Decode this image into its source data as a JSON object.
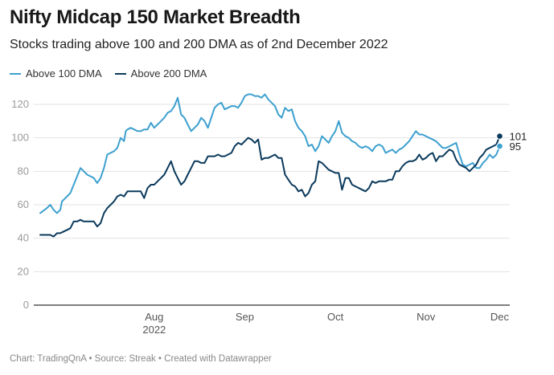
{
  "title": "Nifty Midcap 150 Market Breadth",
  "subtitle": "Stocks trading above 100 and 200 DMA as of 2nd December 2022",
  "footer": "Chart: TradingQnA • Source: Streak • Created with Datawrapper",
  "colors": {
    "above100": "#3da0cf",
    "above200": "#0b3a5c",
    "grid": "#e2e2e2",
    "axis": "#333333"
  },
  "chart_data": {
    "type": "line",
    "title": "Nifty Midcap 150 Market Breadth",
    "subtitle": "Stocks trading above 100 and 200 DMA as of 2nd December 2022",
    "ylim": [
      0,
      130
    ],
    "yticks": [
      0,
      20,
      40,
      60,
      80,
      100,
      120
    ],
    "xlim": [
      0,
      140
    ],
    "xticks": [
      {
        "pos": 34,
        "label": "Aug",
        "sub": "2022"
      },
      {
        "pos": 61,
        "label": "Sep",
        "sub": ""
      },
      {
        "pos": 88,
        "label": "Oct",
        "sub": ""
      },
      {
        "pos": 115,
        "label": "Nov",
        "sub": ""
      },
      {
        "pos": 137,
        "label": "Dec",
        "sub": ""
      }
    ],
    "legend_position": "top-left",
    "grid": true,
    "series": [
      {
        "name": "Above 100 DMA",
        "end_label": "95",
        "points": [
          [
            0,
            55
          ],
          [
            2,
            58
          ],
          [
            3,
            60
          ],
          [
            4,
            57
          ],
          [
            5,
            55
          ],
          [
            6,
            57
          ],
          [
            6.5,
            62
          ],
          [
            8,
            65
          ],
          [
            9,
            67
          ],
          [
            10,
            72
          ],
          [
            11,
            77
          ],
          [
            12,
            82
          ],
          [
            13,
            80
          ],
          [
            14,
            78
          ],
          [
            15,
            77
          ],
          [
            16,
            76
          ],
          [
            17,
            73
          ],
          [
            18,
            76
          ],
          [
            19,
            82
          ],
          [
            20,
            90
          ],
          [
            21,
            91
          ],
          [
            22,
            92
          ],
          [
            23,
            94
          ],
          [
            24,
            100
          ],
          [
            25,
            98
          ],
          [
            25.5,
            104
          ],
          [
            26,
            105
          ],
          [
            27,
            106
          ],
          [
            28,
            105
          ],
          [
            29,
            104
          ],
          [
            30,
            104
          ],
          [
            31,
            105
          ],
          [
            32,
            105
          ],
          [
            33,
            109
          ],
          [
            34,
            106
          ],
          [
            35,
            108
          ],
          [
            36,
            110
          ],
          [
            37,
            112
          ],
          [
            38,
            115
          ],
          [
            39,
            116
          ],
          [
            40,
            119
          ],
          [
            41,
            124
          ],
          [
            42,
            114
          ],
          [
            43,
            112
          ],
          [
            44,
            108
          ],
          [
            45,
            104
          ],
          [
            46,
            106
          ],
          [
            47,
            108
          ],
          [
            48,
            112
          ],
          [
            49,
            110
          ],
          [
            50,
            106
          ],
          [
            51,
            112
          ],
          [
            52,
            118
          ],
          [
            53,
            120
          ],
          [
            54,
            121
          ],
          [
            55,
            117
          ],
          [
            56,
            118
          ],
          [
            57,
            119
          ],
          [
            58,
            119
          ],
          [
            59,
            118
          ],
          [
            60,
            121
          ],
          [
            61,
            125
          ],
          [
            62,
            126
          ],
          [
            63,
            126
          ],
          [
            64,
            125
          ],
          [
            65,
            125
          ],
          [
            66,
            124
          ],
          [
            67,
            126
          ],
          [
            68,
            123
          ],
          [
            69,
            121
          ],
          [
            70,
            119
          ],
          [
            71,
            114
          ],
          [
            72,
            112
          ],
          [
            73,
            118
          ],
          [
            74,
            116
          ],
          [
            75,
            117
          ],
          [
            76,
            110
          ],
          [
            77,
            106
          ],
          [
            78,
            104
          ],
          [
            79,
            101
          ],
          [
            80,
            95
          ],
          [
            81,
            96
          ],
          [
            82,
            92
          ],
          [
            83,
            95
          ],
          [
            84,
            101
          ],
          [
            85,
            99
          ],
          [
            86,
            97
          ],
          [
            87,
            101
          ],
          [
            88,
            104
          ],
          [
            89,
            110
          ],
          [
            90,
            103
          ],
          [
            91,
            101
          ],
          [
            92,
            100
          ],
          [
            93,
            98
          ],
          [
            94,
            97
          ],
          [
            95,
            95
          ],
          [
            96,
            94
          ],
          [
            97,
            95
          ],
          [
            98,
            94
          ],
          [
            99,
            92
          ],
          [
            100,
            95
          ],
          [
            101,
            96
          ],
          [
            102,
            95
          ],
          [
            103,
            91
          ],
          [
            104,
            92
          ],
          [
            105,
            93
          ],
          [
            106,
            91
          ],
          [
            107,
            93
          ],
          [
            108,
            94
          ],
          [
            109,
            96
          ],
          [
            110,
            98
          ],
          [
            111,
            101
          ],
          [
            112,
            104
          ],
          [
            113,
            102
          ],
          [
            114,
            102
          ],
          [
            115,
            101
          ],
          [
            116,
            100
          ],
          [
            117,
            99
          ],
          [
            118,
            98
          ],
          [
            119,
            96
          ],
          [
            120,
            94
          ],
          [
            121,
            94
          ],
          [
            122,
            95
          ],
          [
            123,
            96
          ],
          [
            124,
            97
          ],
          [
            125,
            90
          ],
          [
            126,
            84
          ],
          [
            127,
            83
          ],
          [
            128,
            84
          ],
          [
            129,
            85
          ],
          [
            130,
            82
          ],
          [
            131,
            82
          ],
          [
            132,
            85
          ],
          [
            133,
            87
          ],
          [
            134,
            90
          ],
          [
            135,
            88
          ],
          [
            136,
            90
          ],
          [
            137,
            95
          ]
        ]
      },
      {
        "name": "Above 200 DMA",
        "end_label": "101",
        "points": [
          [
            0,
            42
          ],
          [
            2,
            42
          ],
          [
            3,
            42
          ],
          [
            4,
            41
          ],
          [
            5,
            43
          ],
          [
            6,
            43
          ],
          [
            7,
            44
          ],
          [
            8,
            45
          ],
          [
            9,
            46
          ],
          [
            10,
            50
          ],
          [
            11,
            50
          ],
          [
            12,
            51
          ],
          [
            13,
            50
          ],
          [
            14,
            50
          ],
          [
            15,
            50
          ],
          [
            16,
            50
          ],
          [
            17,
            47
          ],
          [
            18,
            49
          ],
          [
            19,
            55
          ],
          [
            20,
            58
          ],
          [
            21,
            60
          ],
          [
            22,
            62
          ],
          [
            23,
            65
          ],
          [
            24,
            66
          ],
          [
            25,
            65
          ],
          [
            26,
            68
          ],
          [
            27,
            68
          ],
          [
            28,
            68
          ],
          [
            29,
            68
          ],
          [
            30,
            68
          ],
          [
            31,
            64
          ],
          [
            32,
            70
          ],
          [
            33,
            72
          ],
          [
            34,
            72
          ],
          [
            35,
            74
          ],
          [
            36,
            76
          ],
          [
            37,
            78
          ],
          [
            38,
            82
          ],
          [
            39,
            86
          ],
          [
            40,
            80
          ],
          [
            41,
            76
          ],
          [
            42,
            72
          ],
          [
            43,
            74
          ],
          [
            44,
            78
          ],
          [
            45,
            82
          ],
          [
            46,
            86
          ],
          [
            47,
            86
          ],
          [
            48,
            85
          ],
          [
            49,
            85
          ],
          [
            50,
            89
          ],
          [
            51,
            89
          ],
          [
            52,
            89
          ],
          [
            53,
            90
          ],
          [
            54,
            89
          ],
          [
            55,
            89
          ],
          [
            56,
            90
          ],
          [
            57,
            91
          ],
          [
            58,
            95
          ],
          [
            59,
            97
          ],
          [
            60,
            96
          ],
          [
            61,
            98
          ],
          [
            62,
            100
          ],
          [
            63,
            99
          ],
          [
            64,
            97
          ],
          [
            65,
            99
          ],
          [
            66,
            87
          ],
          [
            67,
            88
          ],
          [
            68,
            88
          ],
          [
            69,
            89
          ],
          [
            70,
            90
          ],
          [
            71,
            88
          ],
          [
            72,
            88
          ],
          [
            73,
            78
          ],
          [
            74,
            75
          ],
          [
            75,
            72
          ],
          [
            76,
            71
          ],
          [
            77,
            68
          ],
          [
            78,
            69
          ],
          [
            79,
            65
          ],
          [
            80,
            67
          ],
          [
            81,
            72
          ],
          [
            82,
            74
          ],
          [
            83,
            86
          ],
          [
            84,
            85
          ],
          [
            85,
            83
          ],
          [
            86,
            81
          ],
          [
            87,
            80
          ],
          [
            88,
            79
          ],
          [
            89,
            79
          ],
          [
            90,
            69
          ],
          [
            91,
            76
          ],
          [
            92,
            76
          ],
          [
            93,
            72
          ],
          [
            94,
            71
          ],
          [
            95,
            70
          ],
          [
            96,
            69
          ],
          [
            97,
            68
          ],
          [
            98,
            70
          ],
          [
            99,
            74
          ],
          [
            100,
            73
          ],
          [
            101,
            74
          ],
          [
            102,
            74
          ],
          [
            103,
            74
          ],
          [
            104,
            75
          ],
          [
            105,
            75
          ],
          [
            106,
            80
          ],
          [
            107,
            80
          ],
          [
            108,
            83
          ],
          [
            109,
            85
          ],
          [
            110,
            86
          ],
          [
            111,
            86
          ],
          [
            112,
            87
          ],
          [
            113,
            90
          ],
          [
            114,
            87
          ],
          [
            115,
            88
          ],
          [
            116,
            90
          ],
          [
            117,
            91
          ],
          [
            118,
            86
          ],
          [
            119,
            89
          ],
          [
            120,
            89
          ],
          [
            121,
            91
          ],
          [
            122,
            93
          ],
          [
            123,
            92
          ],
          [
            124,
            87
          ],
          [
            125,
            84
          ],
          [
            126,
            83
          ],
          [
            127,
            82
          ],
          [
            128,
            80
          ],
          [
            129,
            82
          ],
          [
            130,
            84
          ],
          [
            131,
            88
          ],
          [
            132,
            90
          ],
          [
            133,
            93
          ],
          [
            134,
            94
          ],
          [
            135,
            95
          ],
          [
            136,
            96
          ],
          [
            137,
            101
          ]
        ]
      }
    ]
  }
}
